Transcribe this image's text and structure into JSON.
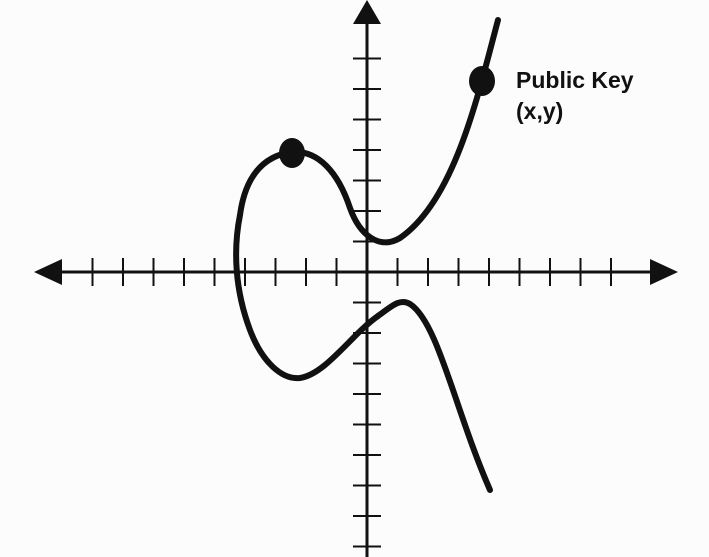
{
  "diagram": {
    "type": "elliptic-curve-graph",
    "axes": {
      "arrows": true,
      "tick_marks": true
    },
    "points": [
      {
        "name": "point-on-curve",
        "label": ""
      },
      {
        "name": "public-key-point",
        "label": "Public Key"
      }
    ],
    "annotation": {
      "title": "Public Key",
      "coords": "(x,y)"
    },
    "colors": {
      "stroke": "#111111",
      "background": "#fcfcfc"
    }
  }
}
